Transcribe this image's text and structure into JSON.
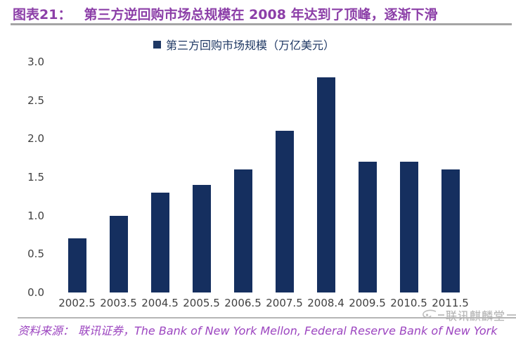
{
  "figure": {
    "tag": "图表21：",
    "title": "第三方逆回购市场总规模在 2008 年达到了顶峰，逐渐下滑"
  },
  "legend": {
    "label": "第三方回购市场规模（万亿美元）"
  },
  "chart_data": {
    "type": "bar",
    "title": "第三方回购市场规模（万亿美元）",
    "categories": [
      "2002.5",
      "2003.5",
      "2004.5",
      "2005.5",
      "2006.5",
      "2007.5",
      "2008.4",
      "2009.5",
      "2010.5",
      "2011.5"
    ],
    "values": [
      0.7,
      1.0,
      1.3,
      1.4,
      1.6,
      2.1,
      2.8,
      1.7,
      1.7,
      1.6
    ],
    "xlabel": "",
    "ylabel": "",
    "ylim": [
      0.0,
      3.0
    ],
    "yticks": [
      0.0,
      0.5,
      1.0,
      1.5,
      2.0,
      2.5,
      3.0
    ],
    "grid": false,
    "legend_position": "top-center",
    "bar_color": "#152F5F"
  },
  "source": {
    "label": "资料来源：",
    "text": "联讯证券，The Bank of New York Mellon, Federal Reserve Bank of New York"
  },
  "watermark": {
    "text": "联讯麒麟堂"
  },
  "colors": {
    "title": "#8C3FA8",
    "source_text": "#9C45C0",
    "bar": "#152F5F",
    "legend_text": "#1F3864",
    "axis_text": "#404040",
    "title_rule": "#A5A5A5",
    "bottom_rule": "#B5B5B5",
    "watermark": "#B5B5B5"
  }
}
